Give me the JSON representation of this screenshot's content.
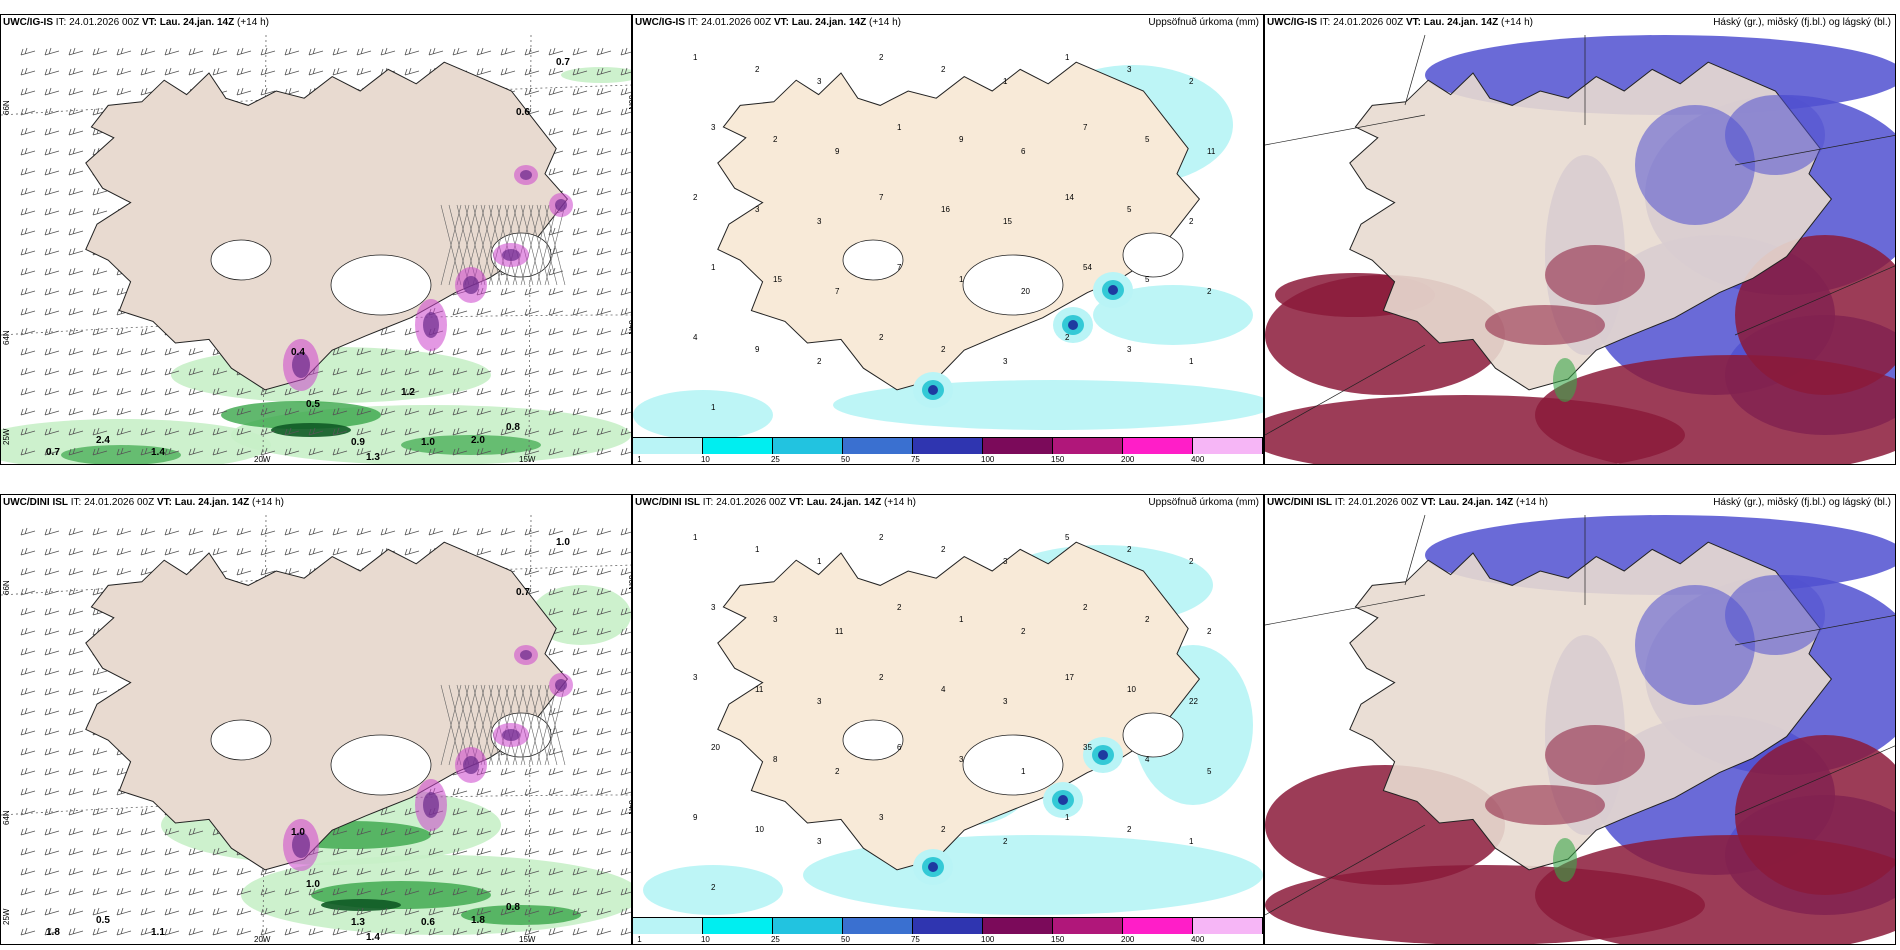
{
  "colors": {
    "land": "#f8ead8",
    "land_muted": "#e8dad0",
    "precip_light": "#b9f4f6",
    "precip_mid": "#34c9d6",
    "precip_dark": "#1e3aa0",
    "wind_green_light": "#c8f0c8",
    "wind_green": "#3aa64a",
    "wind_green_dark": "#0f5a25",
    "magenta": "#cc44cc",
    "cloud_high": "#5050d0",
    "cloud_low": "#8b1a3a"
  },
  "panels": [
    {
      "model": "UWC/IG-IS",
      "it_text": "IT: 24.01.2026 00Z",
      "vt_text": "VT: Lau. 24.jan. 14Z",
      "lead": "(+14 h)",
      "right_title": "",
      "labels": [
        "0.7",
        "0.6",
        "0.4",
        "0.5",
        "0.8",
        "1.0",
        "2.0",
        "2.4",
        "0.7",
        "1.4",
        "0.9",
        "1.3",
        "1.2"
      ],
      "axis": {
        "lat_top": "66N",
        "lat_mid": "64N",
        "lon_left": "25W",
        "lon_mid": "20W",
        "lon_right": "15W",
        "lat_top_r": "66N",
        "lat_mid_r": "64N"
      }
    },
    {
      "model": "UWC/IG-IS",
      "it_text": "IT: 24.01.2026 00Z",
      "vt_text": "VT: Lau. 24.jan. 14Z",
      "lead": "(+14 h)",
      "right_title": "Uppsöfnuð úrkoma (mm)",
      "numbers": [
        "1",
        "2",
        "3",
        "2",
        "2",
        "1",
        "1",
        "3",
        "2",
        "3",
        "2",
        "9",
        "1",
        "9",
        "6",
        "7",
        "5",
        "11",
        "2",
        "3",
        "3",
        "7",
        "16",
        "15",
        "14",
        "5",
        "2",
        "1",
        "15",
        "7",
        "7",
        "1",
        "20",
        "54",
        "5",
        "2",
        "4",
        "9",
        "2",
        "2",
        "2",
        "3",
        "2",
        "3",
        "1",
        "1"
      ],
      "legend": [
        "1",
        "10",
        "25",
        "50",
        "75",
        "100",
        "150",
        "200",
        "400"
      ]
    },
    {
      "model": "UWC/IG-IS",
      "it_text": "IT: 24.01.2026 00Z",
      "vt_text": "VT: Lau. 24.jan. 14Z",
      "lead": "(+14 h)",
      "right_title": "Háský (gr.), miðský (fj.bl.) og lágský (bl.)"
    },
    {
      "model": "UWC/DINI ISL",
      "it_text": "IT: 24.01.2026 00Z",
      "vt_text": "VT: Lau. 24.jan. 14Z",
      "lead": "(+14 h)",
      "right_title": "",
      "labels": [
        "1.0",
        "0.7",
        "1.0",
        "1.0",
        "0.8",
        "0.6",
        "1.8",
        "0.5",
        "1.8",
        "1.1",
        "1.3",
        "1.4"
      ],
      "axis": {
        "lat_top": "66N",
        "lat_mid": "64N",
        "lon_left": "25W",
        "lon_mid": "20W",
        "lon_right": "15W",
        "lat_top_r": "66N",
        "lat_mid_r": "64N"
      }
    },
    {
      "model": "UWC/DINI ISL",
      "it_text": "IT: 24.01.2026 00Z",
      "vt_text": "VT: Lau. 24.jan. 14Z",
      "lead": "(+14 h)",
      "right_title": "Uppsöfnuð úrkoma (mm)",
      "numbers": [
        "1",
        "1",
        "1",
        "2",
        "2",
        "3",
        "5",
        "2",
        "2",
        "3",
        "3",
        "11",
        "2",
        "1",
        "2",
        "2",
        "2",
        "2",
        "3",
        "11",
        "3",
        "2",
        "4",
        "3",
        "17",
        "10",
        "22",
        "20",
        "8",
        "2",
        "6",
        "3",
        "1",
        "35",
        "4",
        "5",
        "9",
        "10",
        "3",
        "3",
        "2",
        "2",
        "1",
        "2",
        "1",
        "2"
      ],
      "legend": [
        "1",
        "10",
        "25",
        "50",
        "75",
        "100",
        "150",
        "200",
        "400"
      ]
    },
    {
      "model": "UWC/DINI ISL",
      "it_text": "IT: 24.01.2026 00Z",
      "vt_text": "VT: Lau. 24.jan. 14Z",
      "lead": "(+14 h)",
      "right_title": "Háský (gr.), miðský (fj.bl.) og lágský (bl.)"
    }
  ]
}
